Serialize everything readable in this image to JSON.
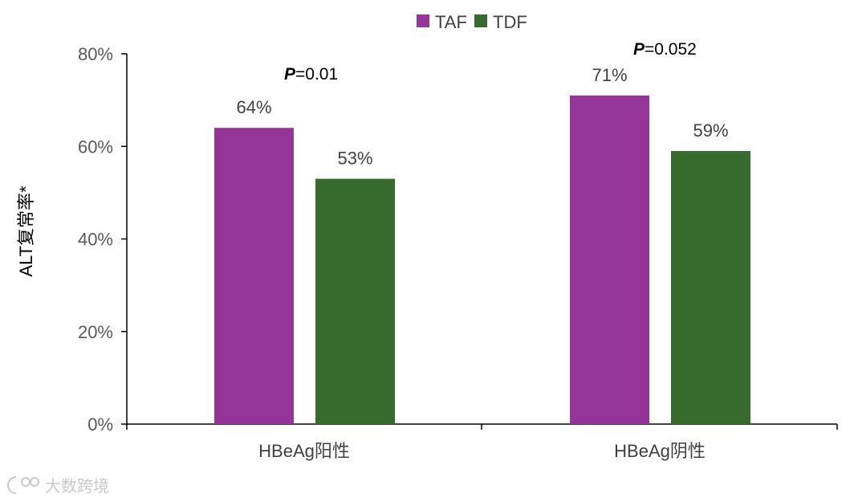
{
  "chart_data": {
    "type": "bar",
    "ylabel": "ALT复常率*",
    "y_ticks": [
      "0%",
      "20%",
      "40%",
      "60%",
      "80%"
    ],
    "ylim": [
      0,
      80
    ],
    "categories": [
      "HBeAg阳性",
      "HBeAg阴性"
    ],
    "series": [
      {
        "name": "TAF",
        "values": [
          64,
          71
        ],
        "labels": [
          "64%",
          "71%"
        ],
        "color": "#953499"
      },
      {
        "name": "TDF",
        "values": [
          53,
          59
        ],
        "labels": [
          "53%",
          "59%"
        ],
        "color": "#376a2d"
      }
    ],
    "p_values": [
      {
        "symbol": "P",
        "value": "=0.01"
      },
      {
        "symbol": "P",
        "value": "=0.052"
      }
    ],
    "legend_position": "top-center",
    "grid": false
  },
  "watermark": {
    "text": "大数跨境",
    "icon": "logo-icon"
  }
}
